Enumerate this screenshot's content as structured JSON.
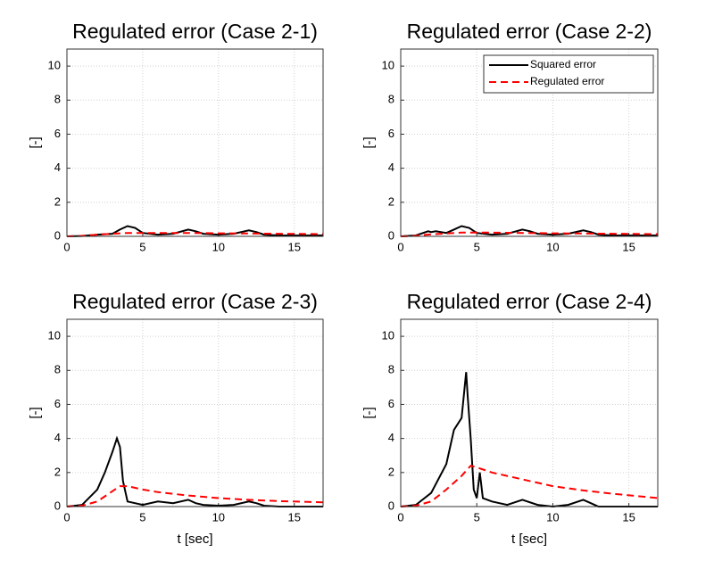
{
  "chart_data": [
    {
      "type": "line",
      "title": "Regulated error (Case 2-1)",
      "ylabel": "[-]",
      "xlim": [
        0,
        16.9
      ],
      "ylim": [
        0,
        11
      ],
      "xticks": [
        0,
        5,
        10,
        15
      ],
      "yticks": [
        0,
        2,
        4,
        6,
        8,
        10
      ],
      "grid": true,
      "series": [
        {
          "color": "#000000",
          "style": "solid",
          "x": [
            0,
            1,
            2,
            3,
            3.5,
            4,
            4.5,
            5,
            6,
            7,
            8,
            8.5,
            9,
            10,
            11,
            12,
            12.5,
            13,
            14,
            15,
            16.9
          ],
          "values": [
            0,
            0.02,
            0.1,
            0.15,
            0.4,
            0.6,
            0.5,
            0.2,
            0.1,
            0.15,
            0.4,
            0.3,
            0.15,
            0.1,
            0.15,
            0.35,
            0.25,
            0.1,
            0.05,
            0.05,
            0.05
          ]
        },
        {
          "color": "#ff0000",
          "style": "dashed",
          "x": [
            0,
            1,
            2,
            3,
            4,
            6,
            8,
            10,
            12,
            14,
            16.9
          ],
          "values": [
            0,
            0.03,
            0.1,
            0.15,
            0.2,
            0.2,
            0.2,
            0.18,
            0.17,
            0.15,
            0.13
          ]
        }
      ]
    },
    {
      "type": "line",
      "title": "Regulated error (Case 2-2)",
      "ylabel": "[-]",
      "xlim": [
        0,
        16.9
      ],
      "ylim": [
        0,
        11
      ],
      "xticks": [
        0,
        5,
        10,
        15
      ],
      "yticks": [
        0,
        2,
        4,
        6,
        8,
        10
      ],
      "grid": true,
      "legend": "upper right",
      "series": [
        {
          "name": "Squared error",
          "color": "#000000",
          "style": "solid",
          "x": [
            0,
            1,
            1.8,
            2,
            2.3,
            3,
            3.5,
            4,
            4.5,
            5,
            6,
            7,
            8,
            8.5,
            9,
            10,
            11,
            12,
            12.5,
            13,
            14,
            15,
            16.9
          ],
          "values": [
            0,
            0.05,
            0.3,
            0.25,
            0.3,
            0.2,
            0.4,
            0.6,
            0.5,
            0.2,
            0.1,
            0.15,
            0.4,
            0.3,
            0.15,
            0.1,
            0.15,
            0.35,
            0.25,
            0.1,
            0.05,
            0.05,
            0.05
          ]
        },
        {
          "name": "Regulated error",
          "color": "#ff0000",
          "style": "dashed",
          "x": [
            0,
            1,
            2,
            3,
            4,
            6,
            8,
            10,
            12,
            14,
            16.9
          ],
          "values": [
            0,
            0.03,
            0.12,
            0.17,
            0.22,
            0.22,
            0.2,
            0.18,
            0.17,
            0.15,
            0.13
          ]
        }
      ]
    },
    {
      "type": "line",
      "title": "Regulated error (Case 2-3)",
      "xlabel": "t [sec]",
      "ylabel": "[-]",
      "xlim": [
        0,
        16.9
      ],
      "ylim": [
        0,
        11
      ],
      "xticks": [
        0,
        5,
        10,
        15
      ],
      "yticks": [
        0,
        2,
        4,
        6,
        8,
        10
      ],
      "grid": true,
      "series": [
        {
          "color": "#000000",
          "style": "solid",
          "x": [
            0,
            1,
            2,
            2.5,
            3,
            3.3,
            3.5,
            3.7,
            4,
            5,
            6,
            7,
            8,
            8.5,
            9,
            10,
            11,
            12,
            12.5,
            13,
            14,
            16.9
          ],
          "values": [
            0,
            0.1,
            1,
            2,
            3.2,
            4,
            3.5,
            1.5,
            0.3,
            0.1,
            0.3,
            0.2,
            0.4,
            0.2,
            0.1,
            0.05,
            0.1,
            0.3,
            0.2,
            0.05,
            0,
            0
          ]
        },
        {
          "color": "#ff0000",
          "style": "dashed",
          "x": [
            0,
            1,
            2,
            3,
            3.5,
            4,
            5,
            6,
            8,
            10,
            12,
            14,
            16.9
          ],
          "values": [
            0,
            0.05,
            0.3,
            0.9,
            1.2,
            1.2,
            1.0,
            0.85,
            0.65,
            0.5,
            0.4,
            0.32,
            0.25
          ]
        }
      ]
    },
    {
      "type": "line",
      "title": "Regulated error (Case 2-4)",
      "xlabel": "t [sec]",
      "ylabel": "[-]",
      "xlim": [
        0,
        16.9
      ],
      "ylim": [
        0,
        11
      ],
      "xticks": [
        0,
        5,
        10,
        15
      ],
      "yticks": [
        0,
        2,
        4,
        6,
        8,
        10
      ],
      "grid": true,
      "series": [
        {
          "color": "#000000",
          "style": "solid",
          "x": [
            0,
            1,
            2,
            3,
            3.5,
            4,
            4.2,
            4.3,
            4.4,
            4.6,
            4.8,
            5,
            5.2,
            5.4,
            6,
            7,
            8,
            9,
            10,
            11,
            12,
            12.5,
            13,
            16.9
          ],
          "values": [
            0,
            0.1,
            0.8,
            2.5,
            4.5,
            5.2,
            7,
            7.9,
            6.5,
            4,
            1,
            0.5,
            2,
            0.5,
            0.3,
            0.1,
            0.4,
            0.1,
            0,
            0.1,
            0.4,
            0.2,
            0,
            0
          ]
        },
        {
          "color": "#ff0000",
          "style": "dashed",
          "x": [
            0,
            1,
            2,
            3,
            4,
            4.6,
            5,
            6,
            8,
            10,
            12,
            14,
            16.9
          ],
          "values": [
            0,
            0.05,
            0.3,
            1,
            1.8,
            2.4,
            2.3,
            2,
            1.6,
            1.2,
            0.95,
            0.75,
            0.5
          ]
        }
      ]
    }
  ]
}
